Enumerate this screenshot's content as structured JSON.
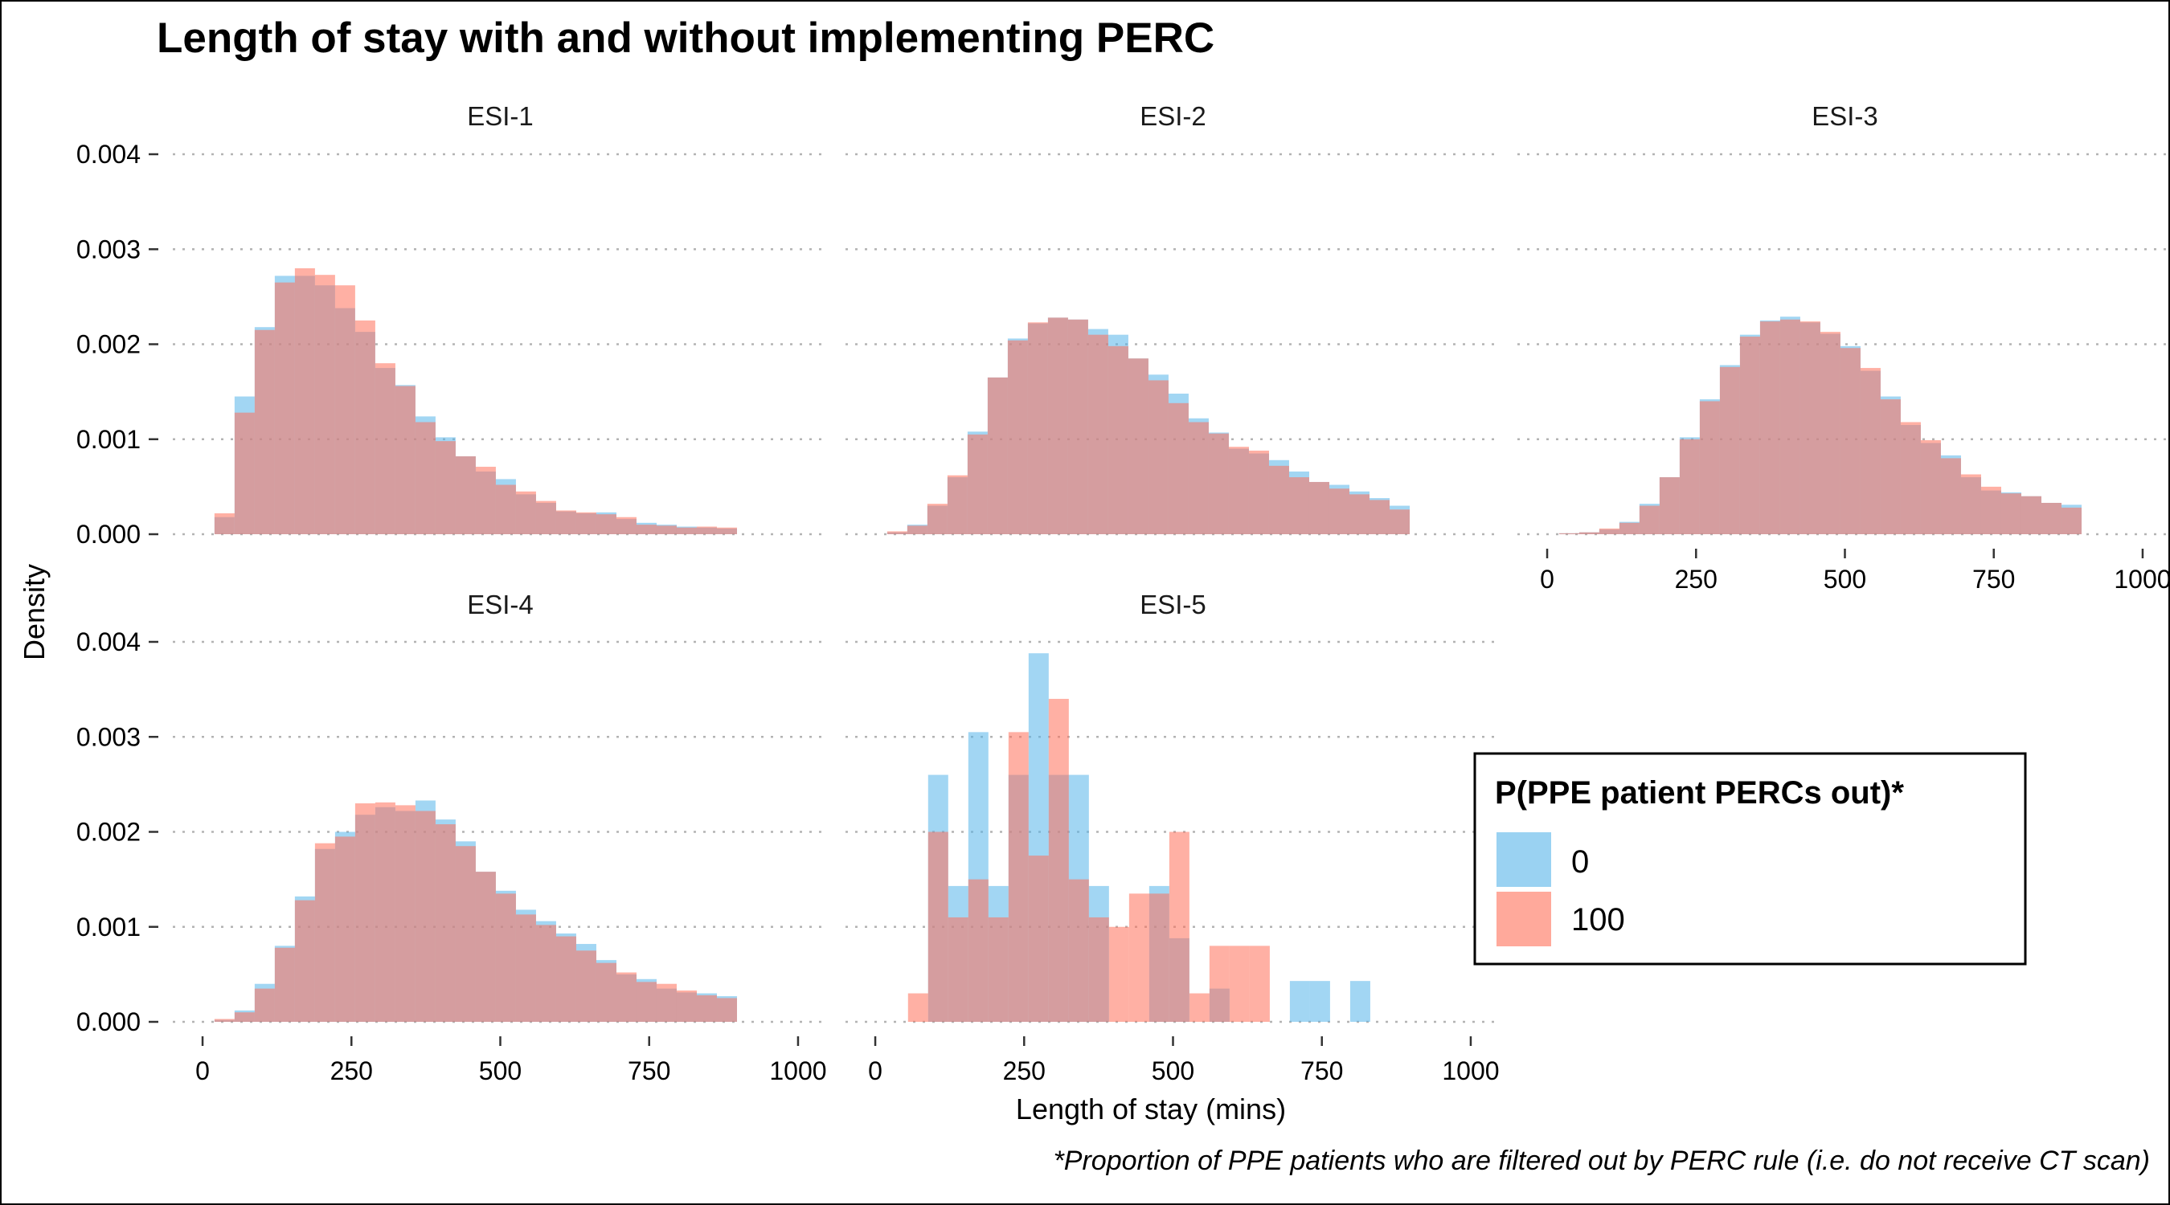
{
  "chart_data": {
    "type": "bar",
    "title": "Length of stay with and without implementing PERC",
    "xlabel": "Length of stay (mins)",
    "ylabel": "Density",
    "caption": "*Proportion of PPE patients who are filtered out by PERC rule (i.e. do not receive CT scan)",
    "xlim": [
      -50,
      1050
    ],
    "ylim": [
      0,
      0.0042
    ],
    "x_ticks": [
      0,
      250,
      500,
      750,
      1000
    ],
    "x_tick_labels": [
      "0",
      "250",
      "500",
      "750",
      "1000"
    ],
    "y_ticks": [
      0,
      0.001,
      0.002,
      0.003,
      0.004
    ],
    "y_tick_labels": [
      "0.000",
      "0.001",
      "0.002",
      "0.003",
      "0.004"
    ],
    "grid": "horizontal dotted",
    "legend": {
      "title": "P(PPE patient PERCs out)*",
      "placement": "right",
      "entries": [
        {
          "label": "0",
          "color": "#56B4E9"
        },
        {
          "label": "100",
          "color": "#FF6F59"
        }
      ]
    },
    "colors": {
      "series_0": "#56B4E9",
      "series_100": "#FF6F59"
    },
    "opacity": 0.55,
    "panels": [
      {
        "name": "ESI-1",
        "bin_start": 20,
        "bin_width": 33.75,
        "series": [
          {
            "name": "0",
            "values": [
              0.00018,
              0.00145,
              0.00218,
              0.00272,
              0.00272,
              0.00262,
              0.00238,
              0.00213,
              0.00175,
              0.00157,
              0.00124,
              0.00102,
              0.00082,
              0.00066,
              0.00058,
              0.00042,
              0.00033,
              0.00024,
              0.00022,
              0.00023,
              0.00016,
              0.00012,
              0.0001,
              8e-05,
              7e-05,
              6e-05
            ]
          },
          {
            "name": "100",
            "values": [
              0.00022,
              0.00128,
              0.00215,
              0.00265,
              0.0028,
              0.00273,
              0.00262,
              0.00225,
              0.0018,
              0.00156,
              0.00118,
              0.00098,
              0.00082,
              0.00071,
              0.00052,
              0.00045,
              0.00035,
              0.00025,
              0.00023,
              0.00021,
              0.00018,
              0.0001,
              9e-05,
              7e-05,
              8e-05,
              7e-05
            ]
          }
        ]
      },
      {
        "name": "ESI-2",
        "bin_start": 20,
        "bin_width": 33.75,
        "series": [
          {
            "name": "0",
            "values": [
              2e-05,
              0.0001,
              0.0003,
              0.0006,
              0.00108,
              0.00165,
              0.00206,
              0.00222,
              0.00228,
              0.00226,
              0.00216,
              0.0021,
              0.00185,
              0.00168,
              0.00148,
              0.00122,
              0.00107,
              0.0009,
              0.00085,
              0.00078,
              0.00066,
              0.00055,
              0.00052,
              0.00045,
              0.00038,
              0.0003
            ]
          },
          {
            "name": "100",
            "values": [
              3e-05,
              9e-05,
              0.00032,
              0.00062,
              0.00105,
              0.00165,
              0.00204,
              0.00223,
              0.00228,
              0.00226,
              0.0021,
              0.00198,
              0.00185,
              0.00162,
              0.00138,
              0.00118,
              0.00106,
              0.00092,
              0.00088,
              0.00072,
              0.0006,
              0.00055,
              0.00048,
              0.00042,
              0.00036,
              0.00026
            ]
          }
        ]
      },
      {
        "name": "ESI-3",
        "bin_start": 20,
        "bin_width": 33.75,
        "series": [
          {
            "name": "0",
            "values": [
              1e-05,
              2e-05,
              5e-05,
              0.00013,
              0.00032,
              0.0006,
              0.00102,
              0.00142,
              0.00178,
              0.0021,
              0.00225,
              0.00229,
              0.00223,
              0.00211,
              0.00198,
              0.00172,
              0.00145,
              0.00115,
              0.00096,
              0.00083,
              0.0006,
              0.00046,
              0.00044,
              0.0004,
              0.00033,
              0.00031
            ]
          },
          {
            "name": "100",
            "values": [
              1e-05,
              2e-05,
              6e-05,
              0.00012,
              0.0003,
              0.0006,
              0.001,
              0.0014,
              0.00176,
              0.00208,
              0.00224,
              0.00226,
              0.00224,
              0.00213,
              0.00196,
              0.00175,
              0.00142,
              0.00118,
              0.00099,
              0.0008,
              0.00063,
              0.0005,
              0.00043,
              0.0004,
              0.00033,
              0.00028
            ]
          }
        ]
      },
      {
        "name": "ESI-4",
        "bin_start": 20,
        "bin_width": 33.75,
        "series": [
          {
            "name": "0",
            "values": [
              2e-05,
              0.00012,
              0.0004,
              0.0008,
              0.00132,
              0.00182,
              0.002,
              0.00218,
              0.00226,
              0.00222,
              0.00233,
              0.00213,
              0.0019,
              0.00158,
              0.00138,
              0.00118,
              0.00106,
              0.00093,
              0.00082,
              0.00065,
              0.0005,
              0.00045,
              0.00035,
              0.00031,
              0.0003,
              0.00027
            ]
          },
          {
            "name": "100",
            "values": [
              3e-05,
              0.0001,
              0.00035,
              0.00078,
              0.00128,
              0.00188,
              0.00195,
              0.0023,
              0.00231,
              0.00228,
              0.00222,
              0.00208,
              0.00185,
              0.00158,
              0.00135,
              0.00113,
              0.00102,
              0.0009,
              0.00075,
              0.00062,
              0.00052,
              0.00042,
              0.0004,
              0.00033,
              0.00028,
              0.00025
            ]
          }
        ]
      },
      {
        "name": "ESI-5",
        "bin_start": 55,
        "bin_width": 33.75,
        "series": [
          {
            "name": "0",
            "values": [
              0,
              0.0026,
              0.00143,
              0.00305,
              0.00143,
              0.0026,
              0.00388,
              0.0026,
              0.0026,
              0.00143,
              0,
              0,
              0.00143,
              0.00088,
              0,
              0.00035,
              0,
              0,
              0,
              0.00043,
              0.00043,
              0,
              0.00043
            ]
          },
          {
            "name": "100",
            "values": [
              0.0003,
              0.002,
              0.0011,
              0.0015,
              0.0011,
              0.00305,
              0.00175,
              0.0034,
              0.0015,
              0.0011,
              0.001,
              0.00135,
              0.00135,
              0.002,
              0.0003,
              0.0008,
              0.0008,
              0.0008,
              0,
              0,
              0,
              0,
              0
            ]
          }
        ]
      }
    ]
  }
}
